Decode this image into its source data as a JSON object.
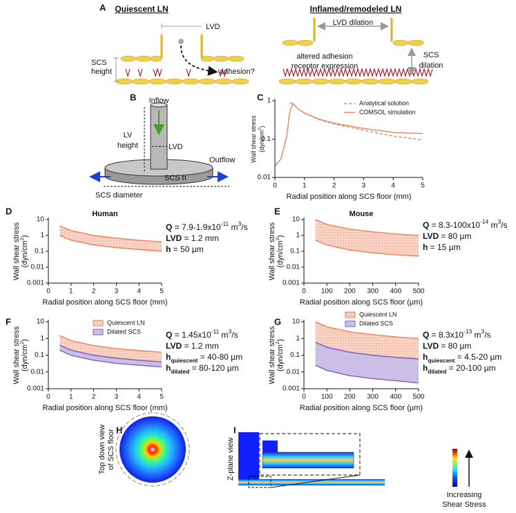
{
  "panel_letters": [
    "A",
    "B",
    "C",
    "D",
    "E",
    "F",
    "G",
    "H",
    "I"
  ],
  "panels": {
    "A": {
      "title_left": "Quiescent LN",
      "title_right": "Inflamed/remodeled LN",
      "lvd": "LVD",
      "scs_height": [
        "SCS",
        "height"
      ],
      "adhesion": "adhesion?",
      "lvd_dilation": "LVD dilation",
      "altered": [
        "altered adhesion",
        "receptor expression"
      ],
      "scs_dilation": [
        "SCS",
        "dilation"
      ]
    },
    "B": {
      "inflow": "Inflow",
      "lv_height": [
        "LV",
        "height"
      ],
      "lvd": "LVD",
      "outflow": "Outflow",
      "scs_h": "SCS h",
      "scs_diameter": "SCS diameter"
    },
    "H": {
      "label": [
        "Top down view",
        "of SCS floor"
      ]
    },
    "I": {
      "label": "Z-plane view",
      "colorbar": [
        "Increasing",
        "Shear Stress"
      ]
    }
  },
  "chart_data": [
    {
      "type": "line",
      "x_label": "Radial position along SCS floor (mm)",
      "y_label": [
        [
          {
            "text": "Wall shear stress"
          }
        ],
        [
          {
            "text": "(dyn/cm"
          },
          {
            "text": "2",
            "style": "sup"
          },
          {
            "text": ")"
          }
        ]
      ],
      "x": [
        0,
        0.2,
        0.4,
        0.5,
        0.6,
        0.8,
        1,
        1.5,
        2,
        3,
        4,
        5
      ],
      "series": [
        {
          "name": "Analytical solution",
          "color": "#e8825a",
          "line_style": "dashed",
          "values": [
            null,
            null,
            null,
            0.9,
            0.85,
            0.6,
            0.48,
            0.32,
            0.25,
            0.17,
            0.12,
            0.095
          ]
        },
        {
          "name": "COMSOL simulation",
          "color": "#e8825a",
          "line_style": "solid",
          "values": [
            0.02,
            0.03,
            0.12,
            0.5,
            0.85,
            0.6,
            0.48,
            0.33,
            0.26,
            0.19,
            0.15,
            0.14
          ]
        }
      ],
      "xlim": [
        0,
        5
      ],
      "ylim": [
        0.01,
        1
      ],
      "log_y": true,
      "xticks": [
        0,
        1,
        2,
        3,
        4,
        5
      ],
      "yticks": [
        0.01,
        0.1,
        1
      ],
      "legend": "upper right"
    },
    {
      "type": "band",
      "title": "Human",
      "x_label": "Radial position along SCS floor (mm)",
      "y_label": [
        [
          {
            "text": "Wall shear stress"
          }
        ],
        [
          {
            "text": "(dyn/cm"
          },
          {
            "text": "2",
            "style": "sup"
          },
          {
            "text": ")"
          }
        ]
      ],
      "x": [
        0.5,
        1,
        2,
        3,
        4,
        5
      ],
      "series": [
        {
          "color": "#e8825a",
          "fill_pattern": "dots",
          "upper": [
            4,
            2,
            1,
            0.67,
            0.5,
            0.4
          ],
          "lower": [
            1,
            0.5,
            0.25,
            0.17,
            0.13,
            0.1
          ]
        }
      ],
      "xlim": [
        0,
        5
      ],
      "ylim": [
        0.001,
        10
      ],
      "log_y": true,
      "xticks": [
        0,
        1,
        2,
        3,
        4,
        5
      ],
      "yticks": [
        0.001,
        0.01,
        0.1,
        1,
        10
      ],
      "annotations": [
        [
          {
            "text": "Q",
            "style": "bold"
          },
          {
            "text": " = 7.9-1.9x10"
          },
          {
            "text": "-11",
            "style": "sup"
          },
          {
            "text": " m"
          },
          {
            "text": "3",
            "style": "sup"
          },
          {
            "text": "/s"
          }
        ],
        [
          {
            "text": "LVD",
            "style": "bold"
          },
          {
            "text": " = 1.2 mm"
          }
        ],
        [
          {
            "text": "h",
            "style": "bold"
          },
          {
            "text": " = 50 µm"
          }
        ]
      ]
    },
    {
      "type": "band",
      "title": "Mouse",
      "x_label": "Radial position along SCS floor (µm)",
      "y_label": [
        [
          {
            "text": "Wall shear stress"
          }
        ],
        [
          {
            "text": "(dyn/cm"
          },
          {
            "text": "2",
            "style": "sup"
          },
          {
            "text": ")"
          }
        ]
      ],
      "x": [
        50,
        100,
        200,
        300,
        400,
        500
      ],
      "series": [
        {
          "color": "#e8825a",
          "fill_pattern": "dots",
          "upper": [
            10,
            5,
            2.5,
            1.7,
            1.25,
            1
          ],
          "lower": [
            0.5,
            0.25,
            0.12,
            0.08,
            0.06,
            0.05
          ]
        }
      ],
      "xlim": [
        0,
        500
      ],
      "ylim": [
        0.001,
        10
      ],
      "log_y": true,
      "xticks": [
        0,
        100,
        200,
        300,
        400,
        500
      ],
      "yticks": [
        0.001,
        0.01,
        0.1,
        1,
        10
      ],
      "annotations": [
        [
          {
            "text": "Q",
            "style": "bold"
          },
          {
            "text": " = 8.3-100x10"
          },
          {
            "text": "-14",
            "style": "sup"
          },
          {
            "text": " m"
          },
          {
            "text": "3",
            "style": "sup"
          },
          {
            "text": "/s"
          }
        ],
        [
          {
            "text": "LVD",
            "style": "bold"
          },
          {
            "text": " = 80 µm"
          }
        ],
        [
          {
            "text": "h",
            "style": "bold"
          },
          {
            "text": " = 15 µm"
          }
        ]
      ]
    },
    {
      "type": "band",
      "x_label": "Radial position along SCS floor (mm)",
      "y_label": [
        [
          {
            "text": "Wall shear stress"
          }
        ],
        [
          {
            "text": "(dyn/cm"
          },
          {
            "text": "2",
            "style": "sup"
          },
          {
            "text": ")"
          }
        ]
      ],
      "x": [
        0.5,
        1,
        2,
        3,
        4,
        5
      ],
      "series": [
        {
          "name": "Quiescent LN",
          "color": "#e8825a",
          "fill_pattern": "dots",
          "upper": [
            1.5,
            0.75,
            0.38,
            0.25,
            0.19,
            0.15
          ],
          "lower": [
            0.4,
            0.2,
            0.1,
            0.067,
            0.05,
            0.04
          ]
        },
        {
          "name": "Dilated SCS",
          "color": "#7b5fc0",
          "fill_pattern": "none",
          "upper": [
            0.4,
            0.2,
            0.1,
            0.067,
            0.05,
            0.04
          ],
          "lower": [
            0.2,
            0.1,
            0.05,
            0.033,
            0.025,
            0.02
          ]
        }
      ],
      "xlim": [
        0,
        5
      ],
      "ylim": [
        0.001,
        10
      ],
      "log_y": true,
      "xticks": [
        0,
        1,
        2,
        3,
        4,
        5
      ],
      "yticks": [
        0.001,
        0.01,
        0.1,
        1,
        10
      ],
      "legend": "upper right",
      "annotations": [
        [
          {
            "text": "Q",
            "style": "bold"
          },
          {
            "text": " = 1.45x10"
          },
          {
            "text": "-11",
            "style": "sup"
          },
          {
            "text": " m"
          },
          {
            "text": "3",
            "style": "sup"
          },
          {
            "text": "/s"
          }
        ],
        [
          {
            "text": "LVD",
            "style": "bold"
          },
          {
            "text": " = 1.2 mm"
          }
        ],
        [
          {
            "text": "h",
            "style": "bold"
          },
          {
            "text": "quiescent",
            "style": "bold sub"
          },
          {
            "text": " = 40-80 µm"
          }
        ],
        [
          {
            "text": "h",
            "style": "bold"
          },
          {
            "text": "dilated",
            "style": "bold sub"
          },
          {
            "text": " = 80-120 µm"
          }
        ]
      ]
    },
    {
      "type": "band",
      "x_label": "Radial position along SCS floor (µm)",
      "y_label": [
        [
          {
            "text": "Wall shear stress"
          }
        ],
        [
          {
            "text": "(dyn/cm"
          },
          {
            "text": "2",
            "style": "sup"
          },
          {
            "text": ")"
          }
        ]
      ],
      "x": [
        50,
        100,
        200,
        300,
        400,
        500
      ],
      "series": [
        {
          "name": "Quiescent LN",
          "color": "#e8825a",
          "fill_pattern": "dots",
          "upper": [
            10,
            5,
            2.5,
            1.7,
            1.25,
            1
          ],
          "lower": [
            0.6,
            0.3,
            0.15,
            0.1,
            0.075,
            0.06
          ]
        },
        {
          "name": "Dilated SCS",
          "color": "#7b5fc0",
          "fill_pattern": "none",
          "upper": [
            0.6,
            0.3,
            0.15,
            0.1,
            0.075,
            0.06
          ],
          "lower": [
            0.025,
            0.0125,
            0.006,
            0.004,
            0.003,
            0.0022
          ]
        }
      ],
      "xlim": [
        0,
        500
      ],
      "ylim": [
        0.001,
        10
      ],
      "log_y": true,
      "xticks": [
        0,
        100,
        200,
        300,
        400,
        500
      ],
      "yticks": [
        0.001,
        0.01,
        0.1,
        1,
        10
      ],
      "legend": "upper left",
      "annotations": [
        [
          {
            "text": "Q",
            "style": "bold"
          },
          {
            "text": " = 8.3x10"
          },
          {
            "text": "-13",
            "style": "sup"
          },
          {
            "text": " m"
          },
          {
            "text": "3",
            "style": "sup"
          },
          {
            "text": "/s"
          }
        ],
        [
          {
            "text": "LVD",
            "style": "bold"
          },
          {
            "text": " = 80 µm"
          }
        ],
        [
          {
            "text": "h",
            "style": "bold"
          },
          {
            "text": "quiescent",
            "style": "bold sub"
          },
          {
            "text": " = 4.5-20 µm"
          }
        ],
        [
          {
            "text": "h",
            "style": "bold"
          },
          {
            "text": "dilated",
            "style": "bold sub"
          },
          {
            "text": " = 20-100 µm"
          }
        ]
      ]
    }
  ]
}
